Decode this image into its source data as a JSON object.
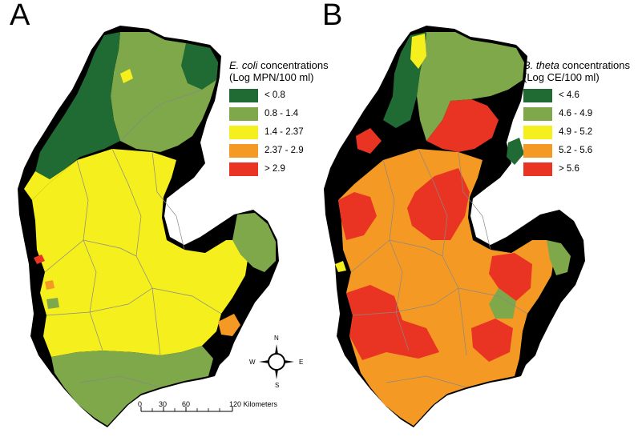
{
  "panels": {
    "a": {
      "letter": "A",
      "legend": {
        "title_italic": "E. coli",
        "title_rest": " concentrations",
        "subtitle": "(Log MPN/100 ml)",
        "items": [
          {
            "label": "< 0.8",
            "color": "#1f6b33"
          },
          {
            "label": "0.8 - 1.4",
            "color": "#7ea84a"
          },
          {
            "label": "1.4 - 2.37",
            "color": "#f5ef1d"
          },
          {
            "label": "2.37 - 2.9",
            "color": "#f49a24"
          },
          {
            "label": "> 2.9",
            "color": "#ea3423"
          }
        ]
      }
    },
    "b": {
      "letter": "B",
      "legend": {
        "title_italic": "B. theta",
        "title_rest": " concentrations",
        "subtitle": "(Log CE/100 ml)",
        "items": [
          {
            "label": "< 4.6",
            "color": "#1f6b33"
          },
          {
            "label": "4.6 - 4.9",
            "color": "#7ea84a"
          },
          {
            "label": "4.9 - 5.2",
            "color": "#f5ef1d"
          },
          {
            "label": "5.2 - 5.6",
            "color": "#f49a24"
          },
          {
            "label": "> 5.6",
            "color": "#ea3423"
          }
        ]
      }
    }
  },
  "scalebar": {
    "labels": [
      "0",
      "30",
      "60",
      "120 Kilometers"
    ]
  },
  "compass": {
    "n": "N",
    "s": "S",
    "e": "E",
    "w": "W"
  },
  "colors": {
    "land_black": "#000000",
    "boundary": "#888888"
  }
}
